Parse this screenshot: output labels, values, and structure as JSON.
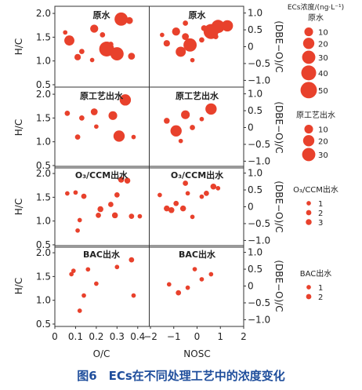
{
  "caption": "图6　ECs在不同处理工艺中的浓度变化",
  "chart_data": {
    "type": "scatter",
    "bubble_color": "#e8412c",
    "left_xlabel": "O/C",
    "right_xlabel": "NOSC",
    "left_ylabel": "H/C",
    "right_ylabel": "(DBE−O)/C",
    "left_xlim": [
      0,
      0.45
    ],
    "right_xlim": [
      -2,
      2
    ],
    "left_ylim": [
      0.45,
      2.15
    ],
    "right_ylim": [
      -1.2,
      1.2
    ],
    "left_xticks": [
      "0",
      "0.1",
      "0.2",
      "0.3",
      "0.4"
    ],
    "left_xtick_values": [
      0,
      0.1,
      0.2,
      0.3,
      0.4
    ],
    "right_xticks": [
      "−2",
      "−1",
      "0",
      "1",
      "2"
    ],
    "right_xtick_values": [
      -2,
      -1,
      0,
      1,
      2
    ],
    "left_yticks": [
      "2.0",
      "1.5",
      "1.0",
      "0.5"
    ],
    "left_ytick_values": [
      2.0,
      1.5,
      1.0,
      0.5
    ],
    "right_yticks": [
      "1.0",
      "0.5",
      "0",
      "−0.5",
      "−1.0"
    ],
    "right_ytick_values": [
      1.0,
      0.5,
      0,
      -0.5,
      -1.0
    ],
    "panels": [
      {
        "label": "原水",
        "left": [
          [
            0.32,
            1.88,
            30
          ],
          [
            0.36,
            1.85,
            5
          ],
          [
            0.19,
            1.68,
            8
          ],
          [
            0.23,
            1.55,
            2
          ],
          [
            0.07,
            1.43,
            15
          ],
          [
            0.25,
            1.25,
            40
          ],
          [
            0.3,
            1.15,
            30
          ],
          [
            0.11,
            1.08,
            4
          ],
          [
            0.37,
            1.1,
            5
          ],
          [
            0.13,
            1.2,
            2
          ],
          [
            0.18,
            1.02,
            1
          ],
          [
            0.27,
            1.35,
            2
          ],
          [
            0.05,
            1.6,
            1
          ]
        ],
        "right": [
          [
            0.9,
            0.6,
            30
          ],
          [
            0.6,
            0.45,
            40
          ],
          [
            1.3,
            0.62,
            20
          ],
          [
            -0.3,
            0.05,
            30
          ],
          [
            -0.7,
            -0.15,
            15
          ],
          [
            -0.9,
            0.45,
            8
          ],
          [
            -0.5,
            0.3,
            5
          ],
          [
            0.3,
            0.55,
            3
          ],
          [
            -1.3,
            0.1,
            4
          ],
          [
            -0.5,
            0.7,
            2
          ],
          [
            0.2,
            0.2,
            2
          ],
          [
            -1.5,
            0.35,
            1
          ],
          [
            -0.2,
            -0.4,
            1
          ],
          [
            0.8,
            0.3,
            2
          ]
        ]
      },
      {
        "label": "原工艺出水",
        "left": [
          [
            0.34,
            1.88,
            20
          ],
          [
            0.28,
            1.55,
            10
          ],
          [
            0.31,
            1.12,
            20
          ],
          [
            0.19,
            1.63,
            5
          ],
          [
            0.06,
            1.6,
            2
          ],
          [
            0.13,
            1.5,
            2
          ],
          [
            0.2,
            1.32,
            1
          ],
          [
            0.11,
            1.1,
            2
          ],
          [
            0.38,
            1.1,
            1
          ]
        ],
        "right": [
          [
            0.6,
            0.55,
            20
          ],
          [
            -0.5,
            0.38,
            10
          ],
          [
            -0.9,
            -0.1,
            20
          ],
          [
            -1.3,
            0.2,
            3
          ],
          [
            -0.2,
            0.0,
            2
          ],
          [
            -0.7,
            -0.4,
            1
          ],
          [
            0.2,
            0.25,
            1
          ]
        ]
      },
      {
        "label": "O₃/CCM出水",
        "left": [
          [
            0.32,
            1.87,
            3
          ],
          [
            0.35,
            1.85,
            3
          ],
          [
            0.3,
            1.55,
            2
          ],
          [
            0.1,
            1.6,
            1
          ],
          [
            0.06,
            1.58,
            1
          ],
          [
            0.14,
            1.52,
            2
          ],
          [
            0.27,
            1.35,
            2
          ],
          [
            0.22,
            1.25,
            3
          ],
          [
            0.29,
            1.12,
            3
          ],
          [
            0.37,
            1.1,
            2
          ],
          [
            0.41,
            1.1,
            1
          ],
          [
            0.21,
            1.12,
            2
          ],
          [
            0.12,
            1.02,
            1
          ],
          [
            0.11,
            0.8,
            1
          ]
        ],
        "right": [
          [
            -1.1,
            -0.1,
            3
          ],
          [
            -1.3,
            -0.05,
            3
          ],
          [
            0.7,
            0.6,
            3
          ],
          [
            0.4,
            0.4,
            2
          ],
          [
            -0.5,
            0.7,
            2
          ],
          [
            -0.4,
            0.4,
            1
          ],
          [
            -0.9,
            0.1,
            2
          ],
          [
            -0.6,
            -0.05,
            3
          ],
          [
            0.2,
            0.3,
            1
          ],
          [
            0.9,
            0.55,
            1
          ],
          [
            -0.2,
            -0.3,
            1
          ],
          [
            -1.6,
            0.35,
            1
          ]
        ]
      },
      {
        "label": "BAC出水",
        "left": [
          [
            0.37,
            1.85,
            2
          ],
          [
            0.3,
            1.7,
            1
          ],
          [
            0.16,
            1.65,
            1
          ],
          [
            0.09,
            1.62,
            1
          ],
          [
            0.2,
            1.35,
            1
          ],
          [
            0.08,
            1.55,
            1
          ],
          [
            0.14,
            1.1,
            1
          ],
          [
            0.38,
            1.1,
            1
          ],
          [
            0.12,
            0.78,
            1
          ]
        ],
        "right": [
          [
            -0.8,
            -0.2,
            2
          ],
          [
            -0.1,
            0.5,
            1
          ],
          [
            0.6,
            0.35,
            1
          ],
          [
            -1.2,
            0.05,
            1
          ],
          [
            -0.4,
            -0.05,
            1
          ],
          [
            0.2,
            0.2,
            1
          ]
        ]
      }
    ],
    "legends": [
      {
        "title": "ECs浓度/(ng·L⁻¹)",
        "subtitle": "原水",
        "values": [
          "10",
          "20",
          "30",
          "40",
          "50"
        ],
        "sizes": [
          10,
          20,
          30,
          40,
          50
        ]
      },
      {
        "subtitle": "原工艺出水",
        "values": [
          "10",
          "20",
          "30"
        ],
        "sizes": [
          10,
          20,
          30
        ]
      },
      {
        "subtitle": "O₃/CCM出水",
        "values": [
          "1",
          "2",
          "3"
        ],
        "sizes": [
          1,
          2,
          3
        ]
      },
      {
        "subtitle": "BAC出水",
        "values": [
          "1",
          "2"
        ],
        "sizes": [
          1,
          2
        ]
      }
    ]
  }
}
